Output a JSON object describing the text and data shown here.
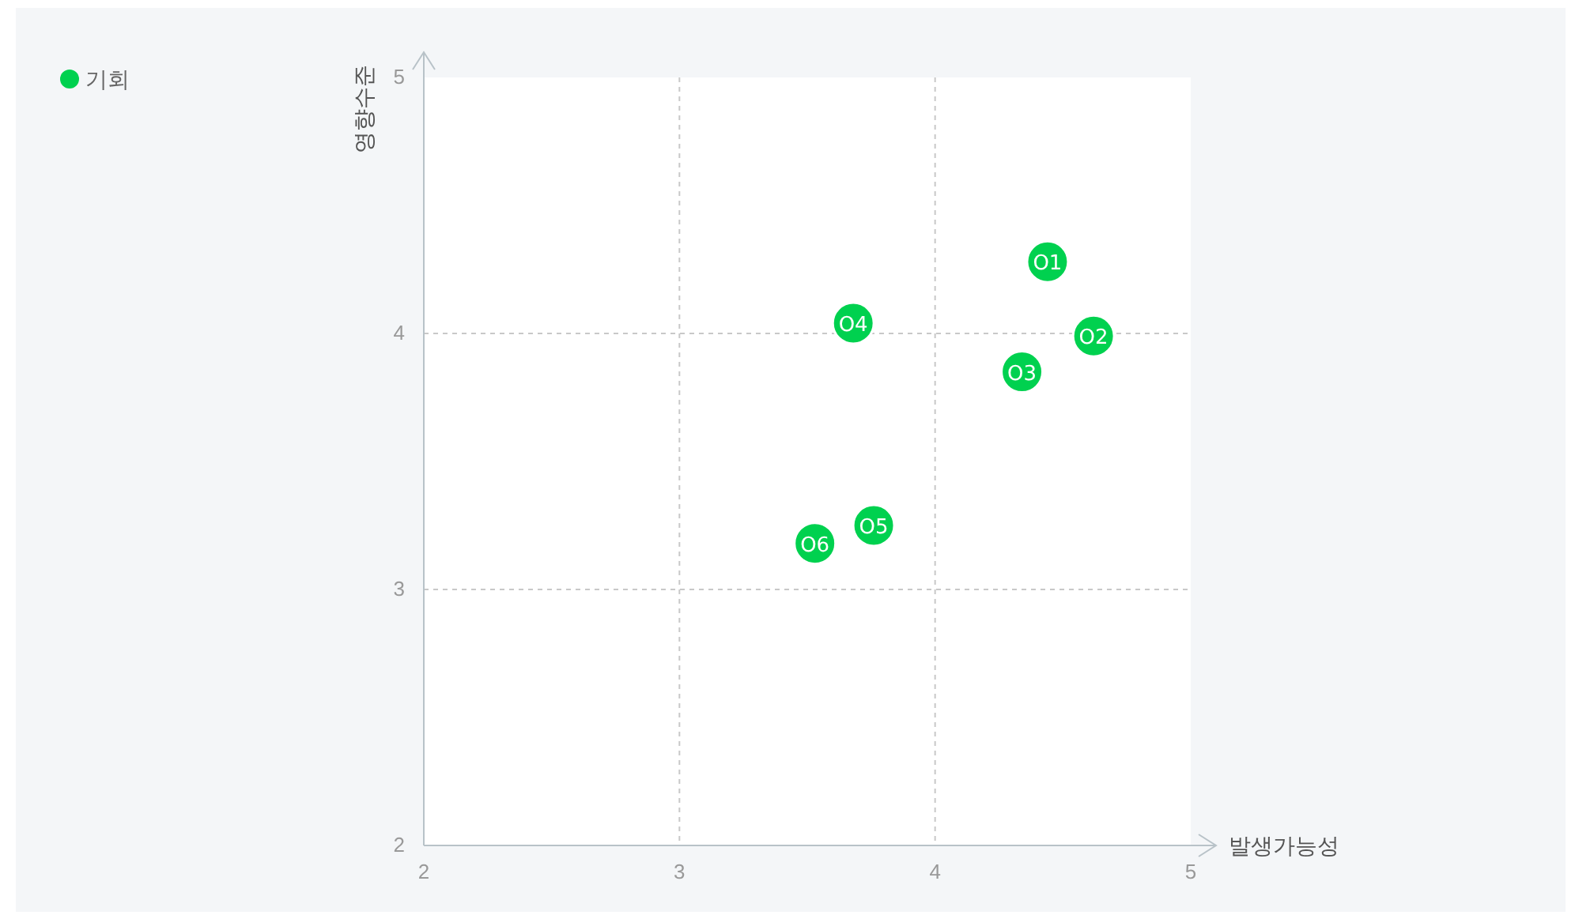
{
  "chart_data": {
    "type": "scatter",
    "xlabel": "발생가능성",
    "ylabel": "영향수준",
    "xlim": [
      2,
      5
    ],
    "ylim": [
      2,
      5
    ],
    "xticks": [
      2,
      3,
      4,
      5
    ],
    "yticks": [
      2,
      3,
      4,
      5
    ],
    "grid": true,
    "legend": "top left",
    "marker": "circle",
    "series": [
      {
        "name": "기회",
        "color": "#00d14f",
        "x": [
          4.44,
          4.62,
          4.34,
          3.68,
          3.76,
          3.53
        ],
        "values": [
          4.28,
          3.99,
          3.85,
          4.04,
          3.25,
          3.18
        ],
        "value_labels": [
          "O1",
          "O2",
          "O3",
          "O4",
          "O5",
          "O6"
        ]
      }
    ]
  }
}
